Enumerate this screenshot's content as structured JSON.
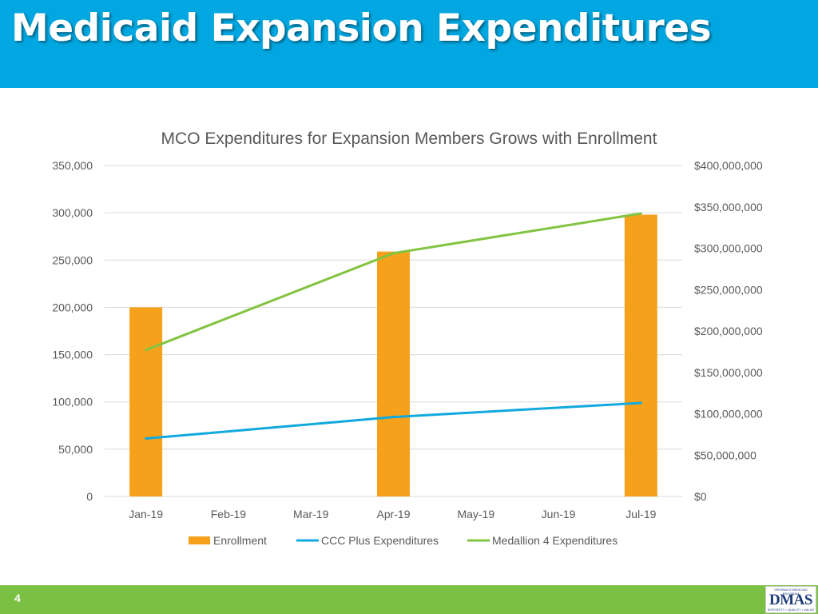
{
  "slide": {
    "title": "Medicaid Expansion Expenditures",
    "page_number": "4",
    "logo": {
      "top_text": "VIRGINIA'S MEDICAID PROGRAM",
      "main_text": "DMAS",
      "bottom_text": "INTEGRITY • QUALITY • VALUE"
    }
  },
  "colors": {
    "header_bg": "#00a7e1",
    "footer_bg": "#7ac143",
    "enrollment": "#f6a11c",
    "ccc_plus": "#11a9de",
    "medallion": "#82c341"
  },
  "chart_data": {
    "type": "bar",
    "title": "MCO Expenditures for Expansion Members Grows with Enrollment",
    "categories": [
      "Jan-19",
      "Feb-19",
      "Mar-19",
      "Apr-19",
      "May-19",
      "Jun-19",
      "Jul-19"
    ],
    "y_left": {
      "range": [
        0,
        350000
      ],
      "ticks": [
        "0",
        "50,000",
        "100,000",
        "150,000",
        "200,000",
        "250,000",
        "300,000",
        "350,000"
      ]
    },
    "y_right": {
      "range": [
        0,
        400000000
      ],
      "ticks": [
        "$0",
        "$50,000,000",
        "$100,000,000",
        "$150,000,000",
        "$200,000,000",
        "$250,000,000",
        "$300,000,000",
        "$350,000,000",
        "$400,000,000"
      ]
    },
    "grid": true,
    "legend": "bottom",
    "series": [
      {
        "name": "Enrollment",
        "type": "bar",
        "axis": "left",
        "values": [
          200000,
          null,
          null,
          259000,
          null,
          null,
          298000
        ]
      },
      {
        "name": "CCC Plus Expenditures",
        "type": "line",
        "axis": "right",
        "values": [
          70000000,
          null,
          null,
          96000000,
          null,
          null,
          113000000
        ]
      },
      {
        "name": "Medallion 4 Expenditures",
        "type": "line",
        "axis": "right",
        "values": [
          177000000,
          null,
          null,
          294000000,
          null,
          null,
          342000000
        ]
      }
    ]
  }
}
